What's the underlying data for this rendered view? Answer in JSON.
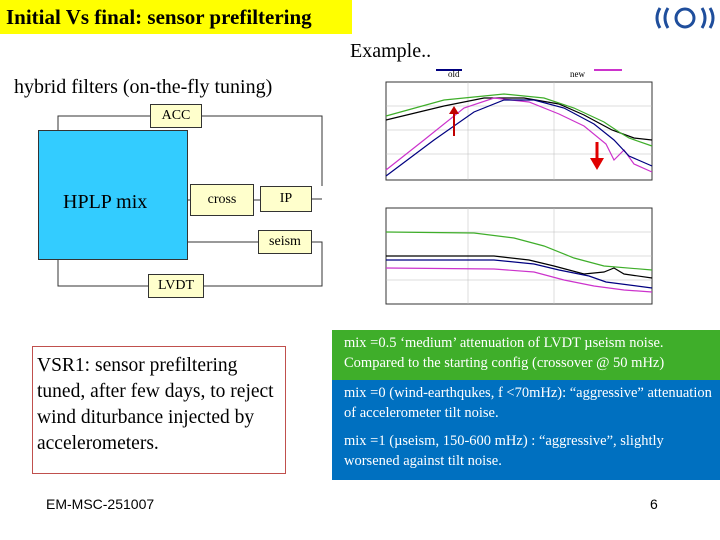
{
  "title": "Initial Vs final: sensor prefiltering",
  "example": "Example..",
  "hybrid_label": "hybrid filters (on-the-fly tuning)",
  "diagram": {
    "acc": "ACC",
    "hplp": "HPLP mix",
    "cross": "cross",
    "ip": "IP",
    "seism": "seism",
    "lvdt": "LVDT"
  },
  "legend": {
    "old": "old",
    "new": "new",
    "colors": {
      "old": "#000080",
      "new": "#cc33cc"
    }
  },
  "vsr_text": "VSR1: sensor prefiltering tuned, after few days, to reject wind diturbance injected by accelerometers.",
  "notes": [
    "mix =0.5 ‘medium’ attenuation of LVDT µseism noise. Compared to the starting config (crossover @ 50 mHz)",
    "mix =0 (wind-earthqukes, f <70mHz): “aggressive” attenuation of accelerometer tilt noise.",
    "mix =1 (µseism, 150-600 mHz) : “aggressive”,   slightly worsened against tilt noise."
  ],
  "footer": "EM-MSC-251007",
  "page_number": "6",
  "colors": {
    "title_bg": "#ffff00",
    "box_bg": "#ffffcc",
    "hplp_bg": "#33ccff",
    "note_green": "#3fae2a",
    "note_blue": "#0070c0"
  }
}
